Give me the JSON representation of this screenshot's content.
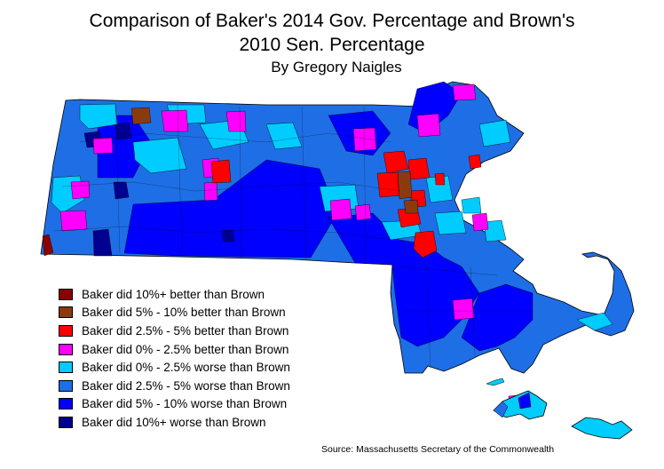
{
  "title_line1": "Comparison of Baker's 2014 Gov. Percentage and Brown's",
  "title_line2": "2010 Sen. Percentage",
  "byline": "By Gregory Naigles",
  "legend": [
    {
      "label": "Baker did 10%+ better than Brown",
      "color": "#8b0000"
    },
    {
      "label": "Baker did 5% - 10% better than Brown",
      "color": "#8b3a0e"
    },
    {
      "label": "Baker did 2.5% - 5% better than Brown",
      "color": "#ff0000"
    },
    {
      "label": "Baker did 0% - 2.5% better than Brown",
      "color": "#ff00ff"
    },
    {
      "label": "Baker did 0% - 2.5% worse than Brown",
      "color": "#00ccff"
    },
    {
      "label": "Baker did 2.5% - 5% worse than Brown",
      "color": "#1e6fe6"
    },
    {
      "label": "Baker did 5% - 10% worse than Brown",
      "color": "#0000ff"
    },
    {
      "label": "Baker did 10%+ worse than Brown",
      "color": "#000090"
    }
  ],
  "source": "Source: Massachusetts Secretary of the Commonwealth"
}
